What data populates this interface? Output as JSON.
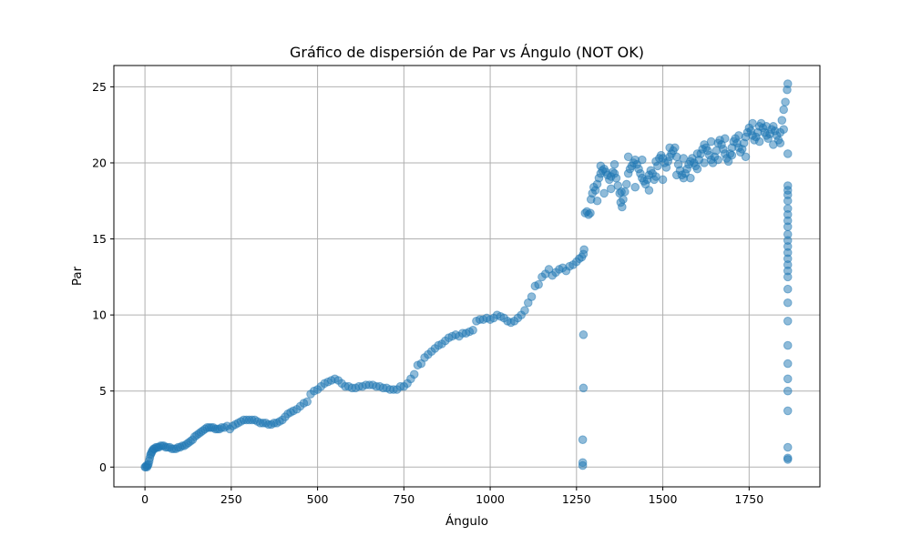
{
  "chart_data": {
    "type": "scatter",
    "title": "Gráfico de dispersión de Par vs Ángulo (NOT OK)",
    "xlabel": "Ángulo",
    "ylabel": "Par",
    "xlim": [
      -90,
      1955
    ],
    "ylim": [
      -1.3,
      26.4
    ],
    "xticks": [
      0,
      250,
      500,
      750,
      1000,
      1250,
      1500,
      1750
    ],
    "yticks": [
      0,
      5,
      10,
      15,
      20,
      25
    ],
    "xtick_labels": [
      "0",
      "250",
      "500",
      "750",
      "1000",
      "1250",
      "1500",
      "1750"
    ],
    "ytick_labels": [
      "0",
      "5",
      "10",
      "15",
      "20",
      "25"
    ],
    "grid": true,
    "marker_color": "#1f77b4",
    "marker_alpha": 0.5,
    "points": [
      [
        0,
        0
      ],
      [
        2,
        0
      ],
      [
        4,
        0.1
      ],
      [
        6,
        0
      ],
      [
        8,
        0.1
      ],
      [
        10,
        0.2
      ],
      [
        12,
        0.4
      ],
      [
        14,
        0.6
      ],
      [
        16,
        0.8
      ],
      [
        18,
        0.9
      ],
      [
        20,
        1.0
      ],
      [
        22,
        1.1
      ],
      [
        25,
        1.2
      ],
      [
        28,
        1.2
      ],
      [
        32,
        1.3
      ],
      [
        36,
        1.3
      ],
      [
        40,
        1.3
      ],
      [
        45,
        1.4
      ],
      [
        50,
        1.4
      ],
      [
        55,
        1.4
      ],
      [
        60,
        1.3
      ],
      [
        66,
        1.3
      ],
      [
        72,
        1.3
      ],
      [
        78,
        1.2
      ],
      [
        84,
        1.2
      ],
      [
        90,
        1.2
      ],
      [
        96,
        1.3
      ],
      [
        102,
        1.3
      ],
      [
        108,
        1.4
      ],
      [
        114,
        1.4
      ],
      [
        120,
        1.5
      ],
      [
        126,
        1.6
      ],
      [
        132,
        1.7
      ],
      [
        138,
        1.8
      ],
      [
        144,
        2.0
      ],
      [
        150,
        2.1
      ],
      [
        156,
        2.2
      ],
      [
        162,
        2.3
      ],
      [
        168,
        2.4
      ],
      [
        174,
        2.5
      ],
      [
        180,
        2.6
      ],
      [
        186,
        2.6
      ],
      [
        192,
        2.6
      ],
      [
        198,
        2.6
      ],
      [
        204,
        2.5
      ],
      [
        210,
        2.5
      ],
      [
        216,
        2.5
      ],
      [
        222,
        2.6
      ],
      [
        230,
        2.6
      ],
      [
        238,
        2.7
      ],
      [
        246,
        2.5
      ],
      [
        254,
        2.7
      ],
      [
        262,
        2.8
      ],
      [
        270,
        2.9
      ],
      [
        278,
        3.0
      ],
      [
        286,
        3.1
      ],
      [
        294,
        3.1
      ],
      [
        302,
        3.1
      ],
      [
        310,
        3.1
      ],
      [
        318,
        3.1
      ],
      [
        326,
        3.0
      ],
      [
        334,
        2.9
      ],
      [
        342,
        2.9
      ],
      [
        350,
        2.9
      ],
      [
        358,
        2.8
      ],
      [
        366,
        2.8
      ],
      [
        374,
        2.9
      ],
      [
        382,
        2.9
      ],
      [
        390,
        3.0
      ],
      [
        398,
        3.1
      ],
      [
        406,
        3.3
      ],
      [
        414,
        3.5
      ],
      [
        422,
        3.6
      ],
      [
        430,
        3.7
      ],
      [
        440,
        3.8
      ],
      [
        450,
        4.0
      ],
      [
        460,
        4.2
      ],
      [
        470,
        4.3
      ],
      [
        480,
        4.8
      ],
      [
        490,
        5.0
      ],
      [
        500,
        5.1
      ],
      [
        510,
        5.3
      ],
      [
        520,
        5.5
      ],
      [
        530,
        5.6
      ],
      [
        540,
        5.7
      ],
      [
        550,
        5.8
      ],
      [
        560,
        5.7
      ],
      [
        570,
        5.5
      ],
      [
        580,
        5.3
      ],
      [
        590,
        5.3
      ],
      [
        600,
        5.2
      ],
      [
        610,
        5.2
      ],
      [
        620,
        5.3
      ],
      [
        630,
        5.3
      ],
      [
        640,
        5.4
      ],
      [
        650,
        5.4
      ],
      [
        660,
        5.4
      ],
      [
        670,
        5.3
      ],
      [
        680,
        5.3
      ],
      [
        690,
        5.2
      ],
      [
        700,
        5.2
      ],
      [
        710,
        5.1
      ],
      [
        720,
        5.1
      ],
      [
        730,
        5.1
      ],
      [
        740,
        5.3
      ],
      [
        750,
        5.3
      ],
      [
        760,
        5.5
      ],
      [
        770,
        5.8
      ],
      [
        780,
        6.1
      ],
      [
        790,
        6.7
      ],
      [
        800,
        6.8
      ],
      [
        810,
        7.2
      ],
      [
        820,
        7.4
      ],
      [
        830,
        7.6
      ],
      [
        840,
        7.8
      ],
      [
        850,
        8.0
      ],
      [
        860,
        8.1
      ],
      [
        870,
        8.3
      ],
      [
        880,
        8.5
      ],
      [
        890,
        8.6
      ],
      [
        900,
        8.7
      ],
      [
        910,
        8.6
      ],
      [
        920,
        8.8
      ],
      [
        930,
        8.8
      ],
      [
        940,
        8.9
      ],
      [
        950,
        9.0
      ],
      [
        960,
        9.6
      ],
      [
        970,
        9.7
      ],
      [
        980,
        9.7
      ],
      [
        990,
        9.8
      ],
      [
        1000,
        9.7
      ],
      [
        1010,
        9.8
      ],
      [
        1020,
        10.0
      ],
      [
        1030,
        9.9
      ],
      [
        1040,
        9.8
      ],
      [
        1050,
        9.6
      ],
      [
        1060,
        9.5
      ],
      [
        1070,
        9.6
      ],
      [
        1080,
        9.8
      ],
      [
        1090,
        10.0
      ],
      [
        1100,
        10.3
      ],
      [
        1110,
        10.8
      ],
      [
        1120,
        11.2
      ],
      [
        1130,
        11.9
      ],
      [
        1140,
        12.0
      ],
      [
        1150,
        12.5
      ],
      [
        1160,
        12.7
      ],
      [
        1170,
        13.0
      ],
      [
        1180,
        12.6
      ],
      [
        1190,
        12.8
      ],
      [
        1200,
        13.0
      ],
      [
        1210,
        13.1
      ],
      [
        1220,
        12.9
      ],
      [
        1230,
        13.2
      ],
      [
        1240,
        13.3
      ],
      [
        1250,
        13.5
      ],
      [
        1258,
        13.7
      ],
      [
        1265,
        13.8
      ],
      [
        1270,
        14.0
      ],
      [
        1272,
        14.3
      ],
      [
        1268,
        0.1
      ],
      [
        1268,
        0.3
      ],
      [
        1268,
        1.8
      ],
      [
        1270,
        5.2
      ],
      [
        1270,
        8.7
      ],
      [
        1275,
        16.7
      ],
      [
        1280,
        16.8
      ],
      [
        1285,
        16.6
      ],
      [
        1290,
        16.7
      ],
      [
        1292,
        17.6
      ],
      [
        1296,
        18.0
      ],
      [
        1300,
        18.4
      ],
      [
        1305,
        18.2
      ],
      [
        1310,
        18.6
      ],
      [
        1315,
        19.0
      ],
      [
        1320,
        19.3
      ],
      [
        1325,
        19.5
      ],
      [
        1330,
        19.6
      ],
      [
        1335,
        19.4
      ],
      [
        1340,
        19.2
      ],
      [
        1345,
        18.9
      ],
      [
        1350,
        19.1
      ],
      [
        1355,
        19.4
      ],
      [
        1360,
        19.3
      ],
      [
        1365,
        19.0
      ],
      [
        1370,
        18.5
      ],
      [
        1375,
        18.0
      ],
      [
        1378,
        17.4
      ],
      [
        1382,
        17.1
      ],
      [
        1385,
        17.6
      ],
      [
        1390,
        18.1
      ],
      [
        1395,
        18.6
      ],
      [
        1400,
        19.3
      ],
      [
        1405,
        19.6
      ],
      [
        1410,
        19.8
      ],
      [
        1415,
        20.0
      ],
      [
        1420,
        20.2
      ],
      [
        1425,
        19.9
      ],
      [
        1430,
        19.6
      ],
      [
        1435,
        19.3
      ],
      [
        1440,
        19.0
      ],
      [
        1445,
        18.8
      ],
      [
        1450,
        18.6
      ],
      [
        1455,
        18.9
      ],
      [
        1460,
        19.2
      ],
      [
        1465,
        19.5
      ],
      [
        1470,
        19.3
      ],
      [
        1475,
        18.9
      ],
      [
        1480,
        19.1
      ],
      [
        1485,
        19.8
      ],
      [
        1490,
        20.3
      ],
      [
        1495,
        20.5
      ],
      [
        1500,
        20.3
      ],
      [
        1505,
        20.0
      ],
      [
        1510,
        19.7
      ],
      [
        1515,
        20.1
      ],
      [
        1520,
        20.4
      ],
      [
        1525,
        20.6
      ],
      [
        1530,
        20.8
      ],
      [
        1535,
        21.0
      ],
      [
        1540,
        20.4
      ],
      [
        1545,
        19.9
      ],
      [
        1550,
        19.5
      ],
      [
        1555,
        19.2
      ],
      [
        1560,
        19.0
      ],
      [
        1565,
        19.3
      ],
      [
        1570,
        19.6
      ],
      [
        1575,
        19.9
      ],
      [
        1580,
        20.1
      ],
      [
        1585,
        20.3
      ],
      [
        1590,
        20.0
      ],
      [
        1595,
        19.8
      ],
      [
        1600,
        19.6
      ],
      [
        1605,
        20.2
      ],
      [
        1610,
        20.6
      ],
      [
        1615,
        20.9
      ],
      [
        1620,
        21.2
      ],
      [
        1625,
        21.0
      ],
      [
        1630,
        20.8
      ],
      [
        1635,
        20.5
      ],
      [
        1640,
        20.2
      ],
      [
        1645,
        20.0
      ],
      [
        1650,
        20.4
      ],
      [
        1655,
        20.8
      ],
      [
        1660,
        21.3
      ],
      [
        1665,
        21.5
      ],
      [
        1670,
        21.2
      ],
      [
        1675,
        20.9
      ],
      [
        1680,
        20.6
      ],
      [
        1685,
        20.3
      ],
      [
        1690,
        20.1
      ],
      [
        1695,
        20.6
      ],
      [
        1700,
        21.0
      ],
      [
        1705,
        21.4
      ],
      [
        1710,
        21.6
      ],
      [
        1715,
        21.3
      ],
      [
        1720,
        21.0
      ],
      [
        1725,
        20.7
      ],
      [
        1730,
        20.9
      ],
      [
        1735,
        21.3
      ],
      [
        1740,
        21.7
      ],
      [
        1745,
        22.0
      ],
      [
        1750,
        22.3
      ],
      [
        1755,
        22.1
      ],
      [
        1760,
        21.8
      ],
      [
        1765,
        21.5
      ],
      [
        1770,
        21.7
      ],
      [
        1775,
        22.0
      ],
      [
        1780,
        22.4
      ],
      [
        1785,
        22.6
      ],
      [
        1790,
        22.3
      ],
      [
        1795,
        22.0
      ],
      [
        1800,
        21.8
      ],
      [
        1805,
        21.6
      ],
      [
        1810,
        21.9
      ],
      [
        1815,
        22.2
      ],
      [
        1820,
        22.4
      ],
      [
        1825,
        22.1
      ],
      [
        1830,
        21.8
      ],
      [
        1835,
        21.5
      ],
      [
        1840,
        22.0
      ],
      [
        1845,
        22.8
      ],
      [
        1850,
        23.5
      ],
      [
        1855,
        24.0
      ],
      [
        1860,
        24.8
      ],
      [
        1862,
        25.2
      ],
      [
        1310,
        17.5
      ],
      [
        1330,
        18.0
      ],
      [
        1350,
        18.3
      ],
      [
        1380,
        18.1
      ],
      [
        1420,
        18.4
      ],
      [
        1460,
        18.2
      ],
      [
        1500,
        18.9
      ],
      [
        1540,
        19.2
      ],
      [
        1580,
        19.0
      ],
      [
        1620,
        20.0
      ],
      [
        1660,
        20.2
      ],
      [
        1700,
        20.5
      ],
      [
        1740,
        20.4
      ],
      [
        1780,
        21.4
      ],
      [
        1820,
        21.2
      ],
      [
        1320,
        19.8
      ],
      [
        1360,
        19.9
      ],
      [
        1400,
        20.4
      ],
      [
        1440,
        20.2
      ],
      [
        1480,
        20.1
      ],
      [
        1520,
        21.0
      ],
      [
        1560,
        20.3
      ],
      [
        1600,
        20.6
      ],
      [
        1640,
        21.4
      ],
      [
        1680,
        21.6
      ],
      [
        1720,
        21.8
      ],
      [
        1760,
        22.6
      ],
      [
        1800,
        22.4
      ],
      [
        1840,
        21.3
      ],
      [
        1850,
        22.2
      ],
      [
        1862,
        20.6
      ],
      [
        1862,
        18.5
      ],
      [
        1862,
        18.2
      ],
      [
        1862,
        17.9
      ],
      [
        1862,
        17.5
      ],
      [
        1862,
        17.0
      ],
      [
        1862,
        16.6
      ],
      [
        1862,
        16.2
      ],
      [
        1862,
        15.8
      ],
      [
        1862,
        15.3
      ],
      [
        1862,
        14.9
      ],
      [
        1862,
        14.5
      ],
      [
        1862,
        14.1
      ],
      [
        1862,
        13.7
      ],
      [
        1862,
        13.3
      ],
      [
        1862,
        12.9
      ],
      [
        1862,
        12.5
      ],
      [
        1862,
        11.7
      ],
      [
        1862,
        10.8
      ],
      [
        1862,
        9.6
      ],
      [
        1862,
        8.0
      ],
      [
        1862,
        6.8
      ],
      [
        1862,
        5.8
      ],
      [
        1862,
        5.0
      ],
      [
        1862,
        3.7
      ],
      [
        1862,
        1.3
      ],
      [
        1862,
        0.6
      ],
      [
        1862,
        0.5
      ]
    ]
  }
}
